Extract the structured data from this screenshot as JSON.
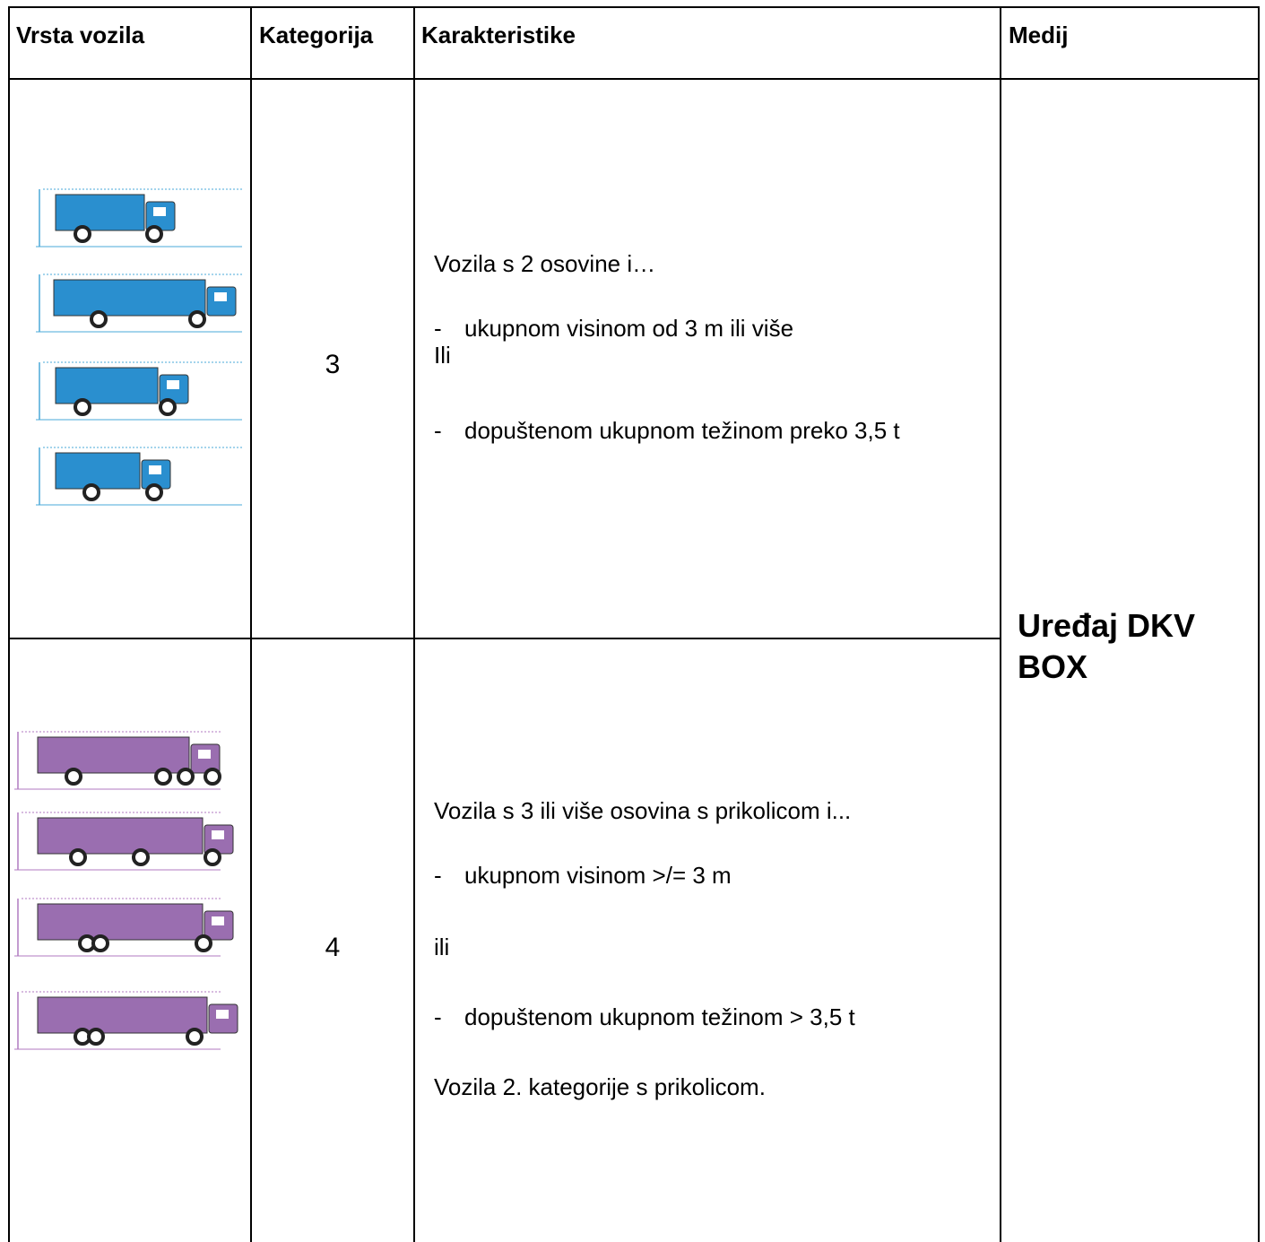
{
  "table": {
    "header": [
      "Vrsta vozila",
      "Kategorija",
      "Karakteristike",
      "Medij"
    ],
    "rows": [
      {
        "category": "3",
        "characteristics": [
          {
            "text": "Vozila s 2 osovine i…"
          },
          {
            "marker": "-",
            "text": "ukupnom visinom od 3 m ili više"
          },
          {
            "text": "Ili"
          },
          {
            "marker": "-",
            "text": "dopuštenom ukupnom težinom preko 3,5 t"
          }
        ]
      },
      {
        "category": "4",
        "characteristics": [
          {
            "text": "Vozila s 3 ili više osovina s prikolicom i..."
          },
          {
            "marker": "-",
            "text": "ukupnom visinom >/= 3 m"
          },
          {
            "text": "ili"
          },
          {
            "marker": "-",
            "text": "dopuštenom ukupnom težinom > 3,5 t"
          },
          {
            "text": "Vozila 2. kategorije s prikolicom."
          }
        ]
      }
    ],
    "medium": "Uređaj DKV BOX"
  }
}
